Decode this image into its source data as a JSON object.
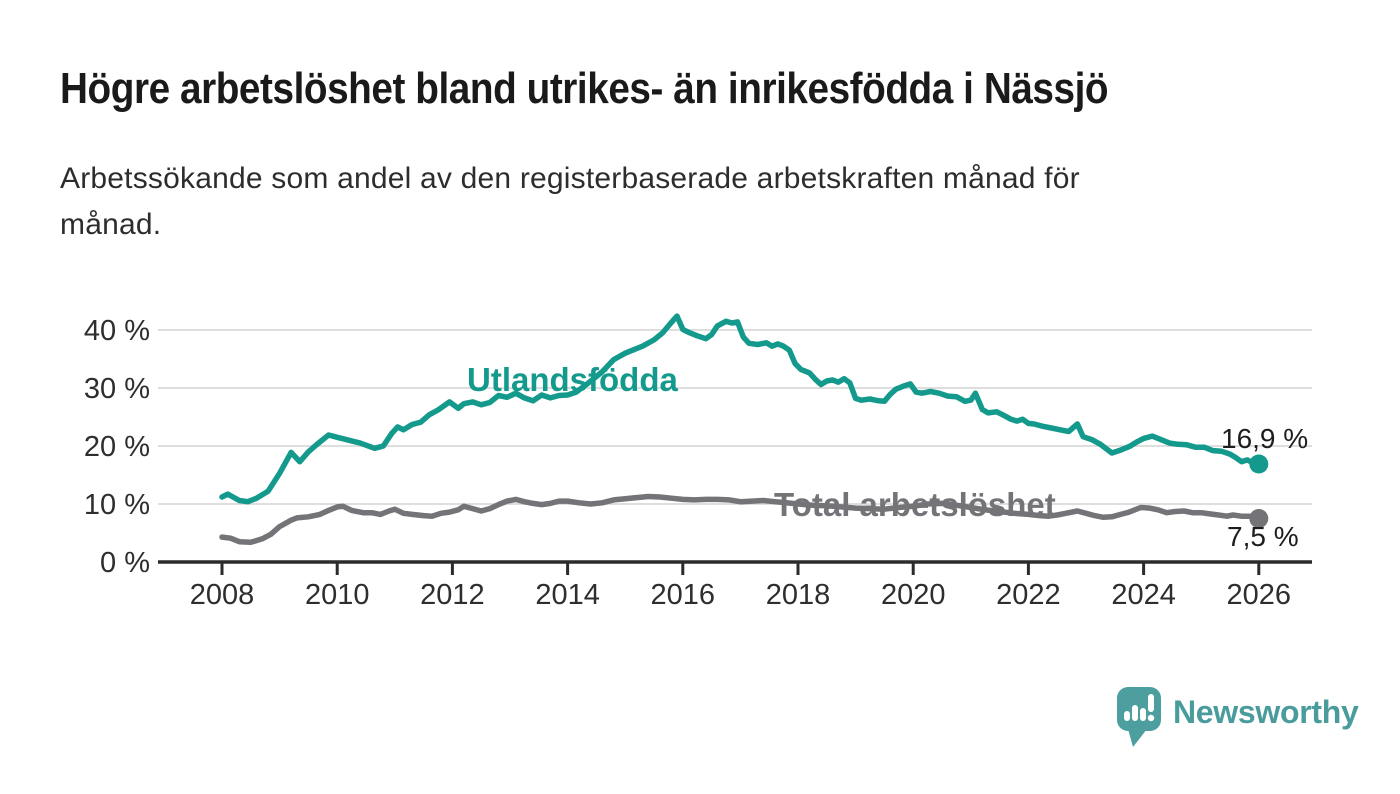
{
  "title": "Högre arbetslöshet bland utrikes- än inrikesfödda i Nässjö",
  "subtitle_line1": "Arbetssökande som andel av den registerbaserade arbetskraften månad för",
  "subtitle_line2": "månad.",
  "logo": {
    "text": "Newsworthy"
  },
  "colors": {
    "teal_series": "#149a8c",
    "gray_series": "#747478",
    "grid": "#d9d9d9",
    "axis": "#2b2b2b",
    "tick_text": "#2e2e2e",
    "logo_teal": "#4d9e9e"
  },
  "chart_data": {
    "type": "line",
    "title": "Högre arbetslöshet bland utrikes- än inrikesfödda i Nässjö",
    "xlabel": "",
    "ylabel": "",
    "unit": "%",
    "ylim": [
      0,
      44
    ],
    "xlim": [
      2007.9,
      2026.9
    ],
    "grid": "horizontal",
    "y_tick_values": [
      0,
      10,
      20,
      30,
      40
    ],
    "y_tick_labels": [
      "0 %",
      "10 %",
      "20 %",
      "30 %",
      "40 %"
    ],
    "x_tick_values": [
      2008,
      2010,
      2012,
      2014,
      2016,
      2018,
      2020,
      2022,
      2024,
      2026
    ],
    "x_tick_labels": [
      "2008",
      "2010",
      "2012",
      "2014",
      "2016",
      "2018",
      "2020",
      "2022",
      "2024",
      "2026"
    ],
    "series": [
      {
        "name": "Utlandsfödda",
        "color": "#149a8c",
        "end_label": "16,9 %",
        "end_value": 16.9,
        "x": [
          2008.0,
          2008.1,
          2008.3,
          2008.45,
          2008.6,
          2008.8,
          2009.0,
          2009.2,
          2009.35,
          2009.5,
          2009.65,
          2009.85,
          2010.0,
          2010.2,
          2010.4,
          2010.65,
          2010.8,
          2010.95,
          2011.05,
          2011.15,
          2011.3,
          2011.45,
          2011.6,
          2011.75,
          2011.95,
          2012.1,
          2012.2,
          2012.35,
          2012.5,
          2012.65,
          2012.8,
          2012.95,
          2013.1,
          2013.25,
          2013.4,
          2013.55,
          2013.7,
          2013.85,
          2014.0,
          2014.15,
          2014.35,
          2014.6,
          2014.8,
          2015.0,
          2015.15,
          2015.3,
          2015.5,
          2015.65,
          2015.8,
          2015.9,
          2016.0,
          2016.1,
          2016.25,
          2016.4,
          2016.5,
          2016.6,
          2016.75,
          2016.85,
          2016.95,
          2017.05,
          2017.15,
          2017.3,
          2017.45,
          2017.55,
          2017.65,
          2017.75,
          2017.85,
          2017.95,
          2018.05,
          2018.2,
          2018.3,
          2018.4,
          2018.5,
          2018.6,
          2018.7,
          2018.8,
          2018.9,
          2019.0,
          2019.1,
          2019.25,
          2019.4,
          2019.5,
          2019.6,
          2019.7,
          2019.85,
          2019.95,
          2020.05,
          2020.15,
          2020.3,
          2020.45,
          2020.6,
          2020.75,
          2020.9,
          2021.0,
          2021.08,
          2021.2,
          2021.3,
          2021.45,
          2021.55,
          2021.7,
          2021.8,
          2021.9,
          2022.0,
          2022.1,
          2022.25,
          2022.4,
          2022.55,
          2022.7,
          2022.85,
          2022.95,
          2023.1,
          2023.25,
          2023.45,
          2023.6,
          2023.75,
          2023.9,
          2024.0,
          2024.15,
          2024.3,
          2024.45,
          2024.6,
          2024.75,
          2024.9,
          2025.05,
          2025.2,
          2025.35,
          2025.5,
          2025.6,
          2025.7,
          2025.8,
          2025.9,
          2026.0
        ],
        "values": [
          11.2,
          11.7,
          10.6,
          10.4,
          11.0,
          12.2,
          15.3,
          18.9,
          17.3,
          19.0,
          20.3,
          21.9,
          21.5,
          21.0,
          20.5,
          19.6,
          20.0,
          22.2,
          23.3,
          22.8,
          23.7,
          24.1,
          25.4,
          26.2,
          27.6,
          26.5,
          27.3,
          27.6,
          27.1,
          27.5,
          28.7,
          28.4,
          29.1,
          28.3,
          27.8,
          28.8,
          28.3,
          28.7,
          28.8,
          29.3,
          30.8,
          32.8,
          34.9,
          36.0,
          36.6,
          37.2,
          38.3,
          39.5,
          41.3,
          42.4,
          40.1,
          39.6,
          39.0,
          38.5,
          39.2,
          40.7,
          41.5,
          41.2,
          41.4,
          38.8,
          37.7,
          37.5,
          37.8,
          37.2,
          37.6,
          37.2,
          36.5,
          34.2,
          33.2,
          32.6,
          31.5,
          30.6,
          31.2,
          31.4,
          31.0,
          31.6,
          30.9,
          28.2,
          27.9,
          28.1,
          27.8,
          27.7,
          28.9,
          29.8,
          30.4,
          30.7,
          29.3,
          29.1,
          29.4,
          29.1,
          28.6,
          28.5,
          27.7,
          27.9,
          29.1,
          26.3,
          25.7,
          25.9,
          25.4,
          24.6,
          24.3,
          24.6,
          23.9,
          23.8,
          23.4,
          23.1,
          22.8,
          22.5,
          23.8,
          21.6,
          21.1,
          20.3,
          18.8,
          19.3,
          19.9,
          20.8,
          21.3,
          21.7,
          21.1,
          20.5,
          20.3,
          20.2,
          19.8,
          19.8,
          19.2,
          19.1,
          18.6,
          18.0,
          17.3,
          17.6,
          17.1,
          16.9
        ]
      },
      {
        "name": "Total arbetslöshet",
        "color": "#747478",
        "end_label": "7,5 %",
        "end_value": 7.5,
        "x": [
          2008.0,
          2008.15,
          2008.3,
          2008.5,
          2008.7,
          2008.85,
          2009.0,
          2009.2,
          2009.3,
          2009.5,
          2009.7,
          2009.85,
          2010.0,
          2010.1,
          2010.25,
          2010.45,
          2010.6,
          2010.75,
          2010.9,
          2011.0,
          2011.15,
          2011.3,
          2011.5,
          2011.65,
          2011.8,
          2011.95,
          2012.1,
          2012.2,
          2012.35,
          2012.5,
          2012.65,
          2012.8,
          2012.95,
          2013.1,
          2013.25,
          2013.4,
          2013.55,
          2013.7,
          2013.85,
          2014.0,
          2014.2,
          2014.4,
          2014.6,
          2014.8,
          2015.0,
          2015.2,
          2015.4,
          2015.6,
          2015.8,
          2016.0,
          2016.2,
          2016.4,
          2016.6,
          2016.8,
          2017.0,
          2017.2,
          2017.4,
          2017.6,
          2017.8,
          2018.0,
          2018.25,
          2018.5,
          2018.75,
          2019.0,
          2019.25,
          2019.5,
          2019.75,
          2020.0,
          2020.25,
          2020.5,
          2020.75,
          2021.0,
          2021.25,
          2021.5,
          2021.75,
          2022.0,
          2022.2,
          2022.35,
          2022.5,
          2022.65,
          2022.85,
          2023.0,
          2023.15,
          2023.3,
          2023.45,
          2023.6,
          2023.75,
          2023.95,
          2024.1,
          2024.25,
          2024.4,
          2024.55,
          2024.7,
          2024.85,
          2025.0,
          2025.15,
          2025.3,
          2025.45,
          2025.55,
          2025.7,
          2025.85,
          2026.0
        ],
        "values": [
          4.3,
          4.1,
          3.5,
          3.4,
          4.0,
          4.8,
          6.1,
          7.2,
          7.6,
          7.8,
          8.2,
          8.9,
          9.5,
          9.6,
          8.9,
          8.5,
          8.5,
          8.2,
          8.8,
          9.1,
          8.4,
          8.2,
          8.0,
          7.9,
          8.4,
          8.6,
          9.0,
          9.6,
          9.2,
          8.8,
          9.2,
          9.9,
          10.5,
          10.8,
          10.4,
          10.1,
          9.9,
          10.1,
          10.5,
          10.5,
          10.2,
          10.0,
          10.2,
          10.7,
          10.9,
          11.1,
          11.3,
          11.2,
          11.0,
          10.8,
          10.7,
          10.8,
          10.8,
          10.7,
          10.4,
          10.5,
          10.6,
          10.4,
          10.2,
          10.0,
          9.8,
          9.7,
          9.5,
          9.3,
          9.2,
          9.1,
          9.4,
          9.6,
          10.0,
          10.1,
          9.8,
          9.4,
          9.0,
          8.7,
          8.4,
          8.2,
          8.0,
          7.9,
          8.1,
          8.4,
          8.8,
          8.4,
          8.0,
          7.7,
          7.8,
          8.2,
          8.6,
          9.4,
          9.3,
          9.0,
          8.5,
          8.7,
          8.8,
          8.5,
          8.5,
          8.3,
          8.1,
          7.9,
          8.1,
          7.9,
          7.9,
          7.5
        ]
      }
    ]
  }
}
